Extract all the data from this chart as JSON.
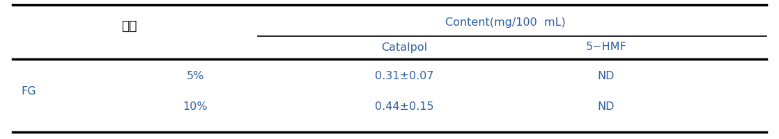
{
  "title_col1": "식햘",
  "header_content": "Content(mg/100  mL)",
  "sub_header_col2": "Catalpol",
  "sub_header_col3": "5−HMF",
  "row_label_group": "FG",
  "row1_sub": "5%",
  "row1_catalpol": "0.31±0.07",
  "row1_hmf": "ND",
  "row2_sub": "10%",
  "row2_catalpol": "0.44±0.15",
  "row2_hmf": "ND",
  "bg_color": "#ffffff",
  "text_color": "#3060a0",
  "korean_text_color": "#000000",
  "line_color": "#000000",
  "font_size": 11.5,
  "figsize": [
    11.18,
    2.0
  ],
  "dpi": 100
}
